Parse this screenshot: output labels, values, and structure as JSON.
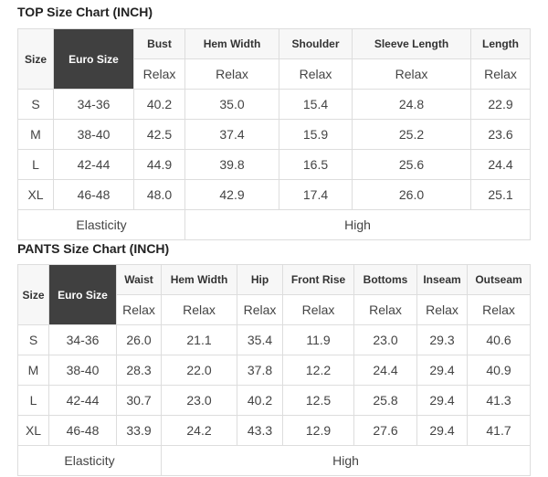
{
  "top": {
    "title": "TOP Size Chart (INCH)",
    "size_label": "Size",
    "euro_label": "Euro Size",
    "columns": [
      "Bust",
      "Hem Width",
      "Shoulder",
      "Sleeve Length",
      "Length"
    ],
    "sub_label": "Relax",
    "rows": [
      {
        "size": "S",
        "euro": "34-36",
        "values": [
          "40.2",
          "35.0",
          "15.4",
          "24.8",
          "22.9"
        ]
      },
      {
        "size": "M",
        "euro": "38-40",
        "values": [
          "42.5",
          "37.4",
          "15.9",
          "25.2",
          "23.6"
        ]
      },
      {
        "size": "L",
        "euro": "42-44",
        "values": [
          "44.9",
          "39.8",
          "16.5",
          "25.6",
          "24.4"
        ]
      },
      {
        "size": "XL",
        "euro": "46-48",
        "values": [
          "48.0",
          "42.9",
          "17.4",
          "26.0",
          "25.1"
        ]
      }
    ],
    "elasticity_label": "Elasticity",
    "elasticity_value": "High"
  },
  "pants": {
    "title": "PANTS Size Chart (INCH)",
    "size_label": "Size",
    "euro_label": "Euro Size",
    "columns": [
      "Waist",
      "Hem Width",
      "Hip",
      "Front Rise",
      "Bottoms",
      "Inseam",
      "Outseam"
    ],
    "sub_label": "Relax",
    "rows": [
      {
        "size": "S",
        "euro": "34-36",
        "values": [
          "26.0",
          "21.1",
          "35.4",
          "11.9",
          "23.0",
          "29.3",
          "40.6"
        ]
      },
      {
        "size": "M",
        "euro": "38-40",
        "values": [
          "28.3",
          "22.0",
          "37.8",
          "12.2",
          "24.4",
          "29.4",
          "40.9"
        ]
      },
      {
        "size": "L",
        "euro": "42-44",
        "values": [
          "30.7",
          "23.0",
          "40.2",
          "12.5",
          "25.8",
          "29.4",
          "41.3"
        ]
      },
      {
        "size": "XL",
        "euro": "46-48",
        "values": [
          "33.9",
          "24.2",
          "43.3",
          "12.9",
          "27.6",
          "29.4",
          "41.7"
        ]
      }
    ],
    "elasticity_label": "Elasticity",
    "elasticity_value": "High"
  },
  "colors": {
    "euro_header_bg": "#404040",
    "header_bg": "#f7f7f7",
    "border": "#dddddd"
  }
}
